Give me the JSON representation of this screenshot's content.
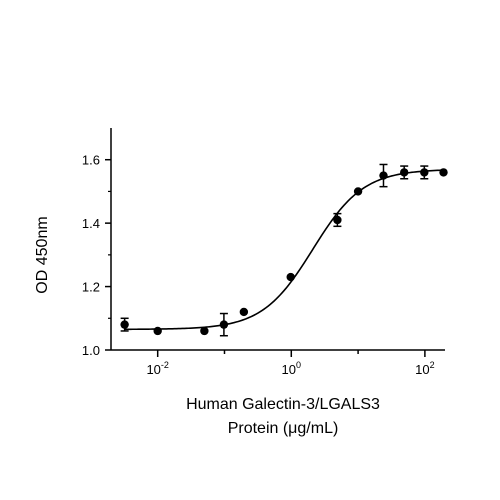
{
  "chart_data": {
    "type": "scatter",
    "xlabel_lines": [
      "Human Galectin-3/LGALS3",
      "Protein (μg/mL)"
    ],
    "ylabel": "OD 450nm",
    "x_scale": "log",
    "xlim": [
      0.002,
      200
    ],
    "ylim": [
      1.0,
      1.7
    ],
    "x_ticks": [
      {
        "value": 0.01,
        "base": "10",
        "exp": "-2"
      },
      {
        "value": 1,
        "base": "10",
        "exp": "0"
      },
      {
        "value": 100,
        "base": "10",
        "exp": "2"
      }
    ],
    "y_ticks": [
      {
        "value": 1.0,
        "label": "1.0"
      },
      {
        "value": 1.2,
        "label": "1.2"
      },
      {
        "value": 1.4,
        "label": "1.4"
      },
      {
        "value": 1.6,
        "label": "1.6"
      }
    ],
    "points": [
      {
        "x": 0.0032,
        "y": 1.08,
        "err": 0.02
      },
      {
        "x": 0.01,
        "y": 1.06,
        "err": 0.0
      },
      {
        "x": 0.05,
        "y": 1.06,
        "err": 0.0
      },
      {
        "x": 0.098,
        "y": 1.08,
        "err": 0.035
      },
      {
        "x": 0.195,
        "y": 1.12,
        "err": 0.0
      },
      {
        "x": 0.98,
        "y": 1.23,
        "err": 0.0
      },
      {
        "x": 4.9,
        "y": 1.41,
        "err": 0.02
      },
      {
        "x": 10.0,
        "y": 1.5,
        "err": 0.0
      },
      {
        "x": 24.0,
        "y": 1.55,
        "err": 0.035
      },
      {
        "x": 49.0,
        "y": 1.56,
        "err": 0.02
      },
      {
        "x": 98.0,
        "y": 1.56,
        "err": 0.02
      },
      {
        "x": 190.0,
        "y": 1.56,
        "err": 0.0
      }
    ],
    "fit": {
      "model": "4PL",
      "bottom": 1.065,
      "top": 1.57,
      "ec50": 2.1,
      "hill": 1.15
    },
    "colors": {
      "marker": "#000000",
      "line": "#000000"
    }
  }
}
